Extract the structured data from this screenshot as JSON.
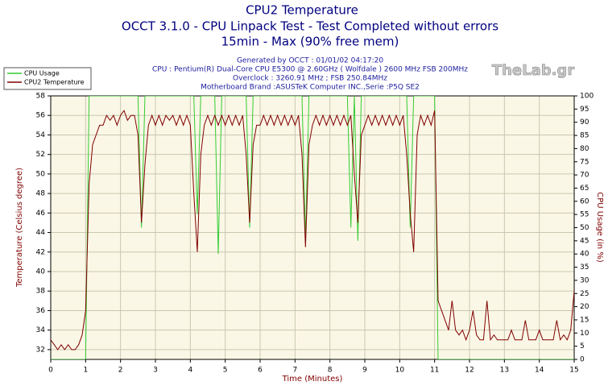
{
  "chart_data": {
    "type": "line",
    "title": "CPU2 Temperature",
    "subtitle": [
      "OCCT 3.1.0 - CPU Linpack Test - Test Completed without errors",
      "15min - Max (90% free mem)"
    ],
    "info": [
      "Generated by OCCT : 01/01/02 04:17:20",
      "CPU : Pentium(R) Dual-Core CPU E5300 @ 2.60GHz ( Wolfdale ) 2600 MHz FSB 200MHz",
      "Overclock : 3260.91 MHz ; FSB 250.84MHz",
      "Motherboard Brand :ASUSTeK Computer INC.,Serie :P5Q SE2"
    ],
    "watermark": "TheLab.gr",
    "xlabel": "Time (Minutes)",
    "ylabel": "Temperature (Celsius degree)",
    "y2label": "CPU Usage (in %)",
    "xlim": [
      0,
      15
    ],
    "xticks": [
      0,
      1,
      2,
      3,
      4,
      5,
      6,
      7,
      8,
      9,
      10,
      11,
      12,
      13,
      14,
      15
    ],
    "ylim": [
      31,
      58
    ],
    "yticks": [
      32,
      34,
      36,
      38,
      40,
      42,
      44,
      46,
      48,
      50,
      52,
      54,
      56,
      58
    ],
    "y2lim": [
      0,
      100
    ],
    "y2ticks": [
      0,
      5,
      10,
      15,
      20,
      25,
      30,
      35,
      40,
      45,
      50,
      55,
      60,
      65,
      70,
      75,
      80,
      85,
      90,
      95,
      100
    ],
    "grid": true,
    "legend": "top-left",
    "x": [
      0,
      0.1,
      0.2,
      0.3,
      0.4,
      0.5,
      0.6,
      0.7,
      0.8,
      0.9,
      1,
      1.1,
      1.2,
      1.3,
      1.4,
      1.5,
      1.6,
      1.7,
      1.8,
      1.9,
      2,
      2.1,
      2.2,
      2.3,
      2.4,
      2.5,
      2.6,
      2.7,
      2.8,
      2.9,
      3,
      3.1,
      3.2,
      3.3,
      3.4,
      3.5,
      3.6,
      3.7,
      3.8,
      3.9,
      4,
      4.1,
      4.2,
      4.3,
      4.4,
      4.5,
      4.6,
      4.7,
      4.8,
      4.9,
      5,
      5.1,
      5.2,
      5.3,
      5.4,
      5.5,
      5.6,
      5.7,
      5.8,
      5.9,
      6,
      6.1,
      6.2,
      6.3,
      6.4,
      6.5,
      6.6,
      6.7,
      6.8,
      6.9,
      7,
      7.1,
      7.2,
      7.3,
      7.4,
      7.5,
      7.6,
      7.7,
      7.8,
      7.9,
      8,
      8.1,
      8.2,
      8.3,
      8.4,
      8.5,
      8.6,
      8.7,
      8.8,
      8.9,
      9,
      9.1,
      9.2,
      9.3,
      9.4,
      9.5,
      9.6,
      9.7,
      9.8,
      9.9,
      10,
      10.1,
      10.2,
      10.3,
      10.4,
      10.5,
      10.6,
      10.7,
      10.8,
      10.9,
      11,
      11.1,
      11.2,
      11.3,
      11.4,
      11.5,
      11.6,
      11.7,
      11.8,
      11.9,
      12,
      12.1,
      12.2,
      12.3,
      12.4,
      12.5,
      12.6,
      12.7,
      12.8,
      12.9,
      13,
      13.1,
      13.2,
      13.3,
      13.4,
      13.5,
      13.6,
      13.7,
      13.8,
      13.9,
      14,
      14.1,
      14.2,
      14.3,
      14.4,
      14.5,
      14.6,
      14.7,
      14.8,
      14.9,
      15
    ],
    "series": [
      {
        "name": "CPU Usage",
        "color": "#33cc33",
        "axis": "y2",
        "values": [
          0,
          0,
          0,
          0,
          0,
          0,
          0,
          0,
          0,
          0,
          0,
          100,
          100,
          100,
          100,
          100,
          100,
          100,
          100,
          100,
          100,
          100,
          100,
          100,
          100,
          100,
          50,
          100,
          100,
          100,
          100,
          100,
          100,
          100,
          100,
          100,
          100,
          100,
          100,
          100,
          100,
          100,
          55,
          100,
          100,
          100,
          100,
          100,
          40,
          100,
          100,
          100,
          100,
          100,
          100,
          100,
          100,
          50,
          100,
          100,
          100,
          100,
          100,
          100,
          100,
          100,
          100,
          100,
          100,
          100,
          100,
          100,
          100,
          45,
          100,
          100,
          100,
          100,
          100,
          100,
          100,
          100,
          100,
          100,
          100,
          100,
          50,
          100,
          45,
          100,
          100,
          100,
          100,
          100,
          100,
          100,
          100,
          100,
          100,
          100,
          100,
          100,
          100,
          50,
          100,
          100,
          100,
          100,
          100,
          100,
          100,
          0,
          0,
          0,
          0,
          0,
          0,
          0,
          0,
          0,
          0,
          0,
          0,
          0,
          0,
          0,
          0,
          0,
          0,
          0,
          0,
          0,
          0,
          0,
          0,
          0,
          0,
          0,
          0,
          0,
          0,
          0,
          0,
          0,
          0,
          0,
          0,
          0,
          0,
          0,
          0
        ]
      },
      {
        "name": "CPU2 Temperature",
        "color": "#800000",
        "values": [
          33,
          32.5,
          32,
          32.5,
          32,
          32.5,
          32,
          32,
          32.5,
          33.5,
          36,
          49,
          53,
          54,
          55,
          55,
          56,
          55.5,
          56,
          55,
          56,
          56.5,
          55.5,
          56,
          56,
          54,
          45,
          51,
          55,
          56,
          55,
          56,
          55,
          56,
          55.5,
          56,
          55,
          56,
          55,
          56,
          55,
          48,
          42,
          52,
          55,
          56,
          55,
          56,
          55,
          56,
          55,
          56,
          55,
          56,
          55,
          56,
          52,
          45,
          53,
          55,
          55,
          56,
          55,
          56,
          55,
          56,
          55,
          56,
          55,
          56,
          55,
          56,
          52,
          42.5,
          53,
          55,
          56,
          55,
          56,
          55,
          56,
          55,
          56,
          55,
          56,
          55,
          56,
          50,
          45,
          54,
          55,
          56,
          55,
          56,
          55,
          56,
          55,
          56,
          55,
          56,
          55,
          56,
          52,
          46,
          42,
          54,
          56,
          55,
          56,
          55,
          56.5,
          37,
          36,
          35,
          34,
          37,
          34,
          33.5,
          34,
          33,
          34,
          36,
          33.5,
          33,
          33,
          37,
          33,
          33.5,
          33,
          33,
          33,
          33,
          34,
          33,
          33,
          33,
          35,
          33,
          33,
          33,
          34,
          33,
          33,
          33,
          33,
          35,
          33,
          33.5,
          33,
          34,
          38
        ]
      }
    ]
  }
}
